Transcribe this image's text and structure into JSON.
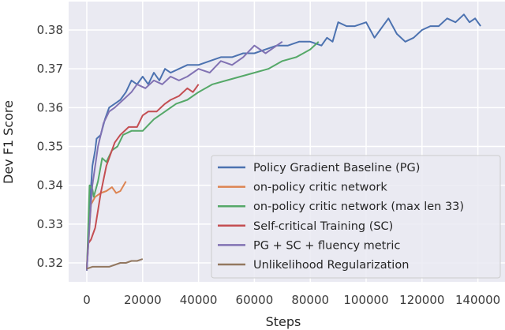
{
  "chart_data": {
    "type": "line",
    "title": "",
    "xlabel": "Steps",
    "ylabel": "Dev F1 Score",
    "xlim": [
      -6000,
      150000
    ],
    "ylim": [
      0.3152,
      0.3872
    ],
    "x_ticks": [
      0,
      20000,
      40000,
      60000,
      80000,
      100000,
      120000,
      140000
    ],
    "x_tick_labels": [
      "0",
      "20000",
      "40000",
      "60000",
      "80000",
      "100000",
      "120000",
      "140000"
    ],
    "y_ticks": [
      0.32,
      0.33,
      0.34,
      0.35,
      0.36,
      0.37,
      0.38
    ],
    "y_tick_labels": [
      "0.32",
      "0.33",
      "0.34",
      "0.35",
      "0.36",
      "0.37",
      "0.38"
    ],
    "grid": true,
    "legend_position": "lower right",
    "series": [
      {
        "name": "Policy Gradient Baseline (PG)",
        "color": "#4c72b0",
        "x": [
          0,
          1000,
          2000,
          3000,
          3500,
          5000,
          6500,
          8000,
          10000,
          12000,
          14000,
          16000,
          18000,
          20000,
          22000,
          24000,
          26000,
          28000,
          30000,
          33000,
          36000,
          40000,
          44000,
          48000,
          52000,
          56000,
          60000,
          64000,
          68000,
          72000,
          76000,
          80000,
          84000,
          86000,
          88000,
          90000,
          93000,
          96000,
          100000,
          103000,
          106000,
          108000,
          111000,
          114000,
          117000,
          120000,
          123000,
          126000,
          129000,
          132000,
          135000,
          137000,
          139000,
          141000
        ],
        "values": [
          0.3185,
          0.334,
          0.345,
          0.349,
          0.352,
          0.353,
          0.357,
          0.36,
          0.361,
          0.362,
          0.364,
          0.367,
          0.366,
          0.368,
          0.366,
          0.369,
          0.367,
          0.37,
          0.369,
          0.37,
          0.371,
          0.371,
          0.372,
          0.373,
          0.373,
          0.374,
          0.374,
          0.375,
          0.376,
          0.376,
          0.377,
          0.377,
          0.376,
          0.378,
          0.377,
          0.382,
          0.381,
          0.381,
          0.382,
          0.378,
          0.381,
          0.383,
          0.379,
          0.377,
          0.378,
          0.38,
          0.381,
          0.381,
          0.383,
          0.382,
          0.384,
          0.382,
          0.383,
          0.381
        ]
      },
      {
        "name": "on-policy critic network",
        "color": "#dd8452",
        "x": [
          0,
          1500,
          3000,
          5000,
          7000,
          9000,
          10500,
          12000,
          14000
        ],
        "values": [
          0.3185,
          0.335,
          0.337,
          0.338,
          0.3385,
          0.3395,
          0.338,
          0.3385,
          0.341
        ]
      },
      {
        "name": "on-policy critic network (max len 33)",
        "color": "#55a868",
        "x": [
          0,
          1000,
          2000,
          2500,
          4000,
          5500,
          7000,
          9000,
          11000,
          13000,
          16000,
          20000,
          24000,
          28000,
          32000,
          36000,
          40000,
          45000,
          50000,
          55000,
          60000,
          65000,
          70000,
          75000,
          80000,
          83000
        ],
        "values": [
          0.318,
          0.34,
          0.339,
          0.337,
          0.341,
          0.347,
          0.346,
          0.349,
          0.35,
          0.353,
          0.354,
          0.354,
          0.357,
          0.359,
          0.361,
          0.362,
          0.364,
          0.366,
          0.367,
          0.368,
          0.369,
          0.37,
          0.372,
          0.373,
          0.375,
          0.377
        ]
      },
      {
        "name": "Self-critical Training (SC)",
        "color": "#c44e52",
        "x": [
          0,
          500,
          1500,
          3000,
          5000,
          7000,
          8000,
          10000,
          12000,
          15000,
          18000,
          20000,
          22000,
          25000,
          28000,
          30000,
          33000,
          36000,
          38000,
          40000
        ],
        "values": [
          0.3185,
          0.325,
          0.326,
          0.329,
          0.338,
          0.345,
          0.347,
          0.351,
          0.353,
          0.355,
          0.355,
          0.358,
          0.359,
          0.359,
          0.361,
          0.362,
          0.363,
          0.365,
          0.364,
          0.366
        ]
      },
      {
        "name": "PG + SC + fluency metric",
        "color": "#8172b3",
        "x": [
          0,
          1000,
          2000,
          4000,
          6000,
          8000,
          10000,
          13000,
          16000,
          18000,
          21000,
          24000,
          27000,
          30000,
          33000,
          36000,
          40000,
          44000,
          48000,
          52000,
          56000,
          60000,
          64000,
          68000,
          70000
        ],
        "values": [
          0.318,
          0.33,
          0.34,
          0.35,
          0.356,
          0.359,
          0.36,
          0.362,
          0.364,
          0.366,
          0.365,
          0.367,
          0.366,
          0.368,
          0.367,
          0.368,
          0.37,
          0.369,
          0.372,
          0.371,
          0.373,
          0.376,
          0.374,
          0.376,
          0.377
        ]
      },
      {
        "name": "Unlikelihood Regularization",
        "color": "#937860",
        "x": [
          0,
          2000,
          5000,
          8000,
          10000,
          12000,
          14000,
          16000,
          18000,
          20000
        ],
        "values": [
          0.3185,
          0.319,
          0.319,
          0.319,
          0.3195,
          0.32,
          0.32,
          0.3205,
          0.3205,
          0.321
        ]
      }
    ]
  }
}
